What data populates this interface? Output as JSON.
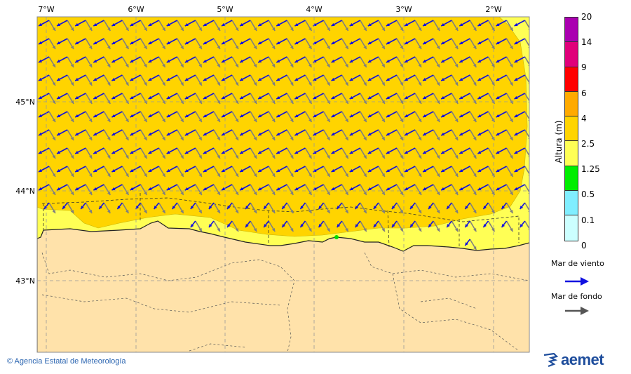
{
  "map": {
    "lon_ticks": [
      "7°W",
      "6°W",
      "5°W",
      "4°W",
      "3°W",
      "2°W"
    ],
    "lat_ticks": [
      "45°N",
      "44°N",
      "43°N"
    ],
    "colors": {
      "sea_2_5_4": "#FFD400",
      "sea_1_25_2_5": "#FFFF55",
      "land": "#FFE2AA",
      "wind_sea": "#1010E0",
      "swell": "#7F7F7F"
    }
  },
  "colorbar": {
    "title": "Altura (m)",
    "levels": [
      "20",
      "14",
      "9",
      "6",
      "4",
      "2.5",
      "1.25",
      "0.5",
      "0.1",
      "0"
    ],
    "colors": [
      "#AA00B0",
      "#E0007A",
      "#FF0000",
      "#FFAA00",
      "#FFD400",
      "#FFFF55",
      "#00EE00",
      "#80EEFF",
      "#CCFFFF"
    ]
  },
  "legend": {
    "wind_sea_label": "Mar de viento",
    "swell_label": "Mar de fondo"
  },
  "footer": {
    "credit": "© Agencia Estatal de Meteorología",
    "logo_text": "aemet"
  }
}
